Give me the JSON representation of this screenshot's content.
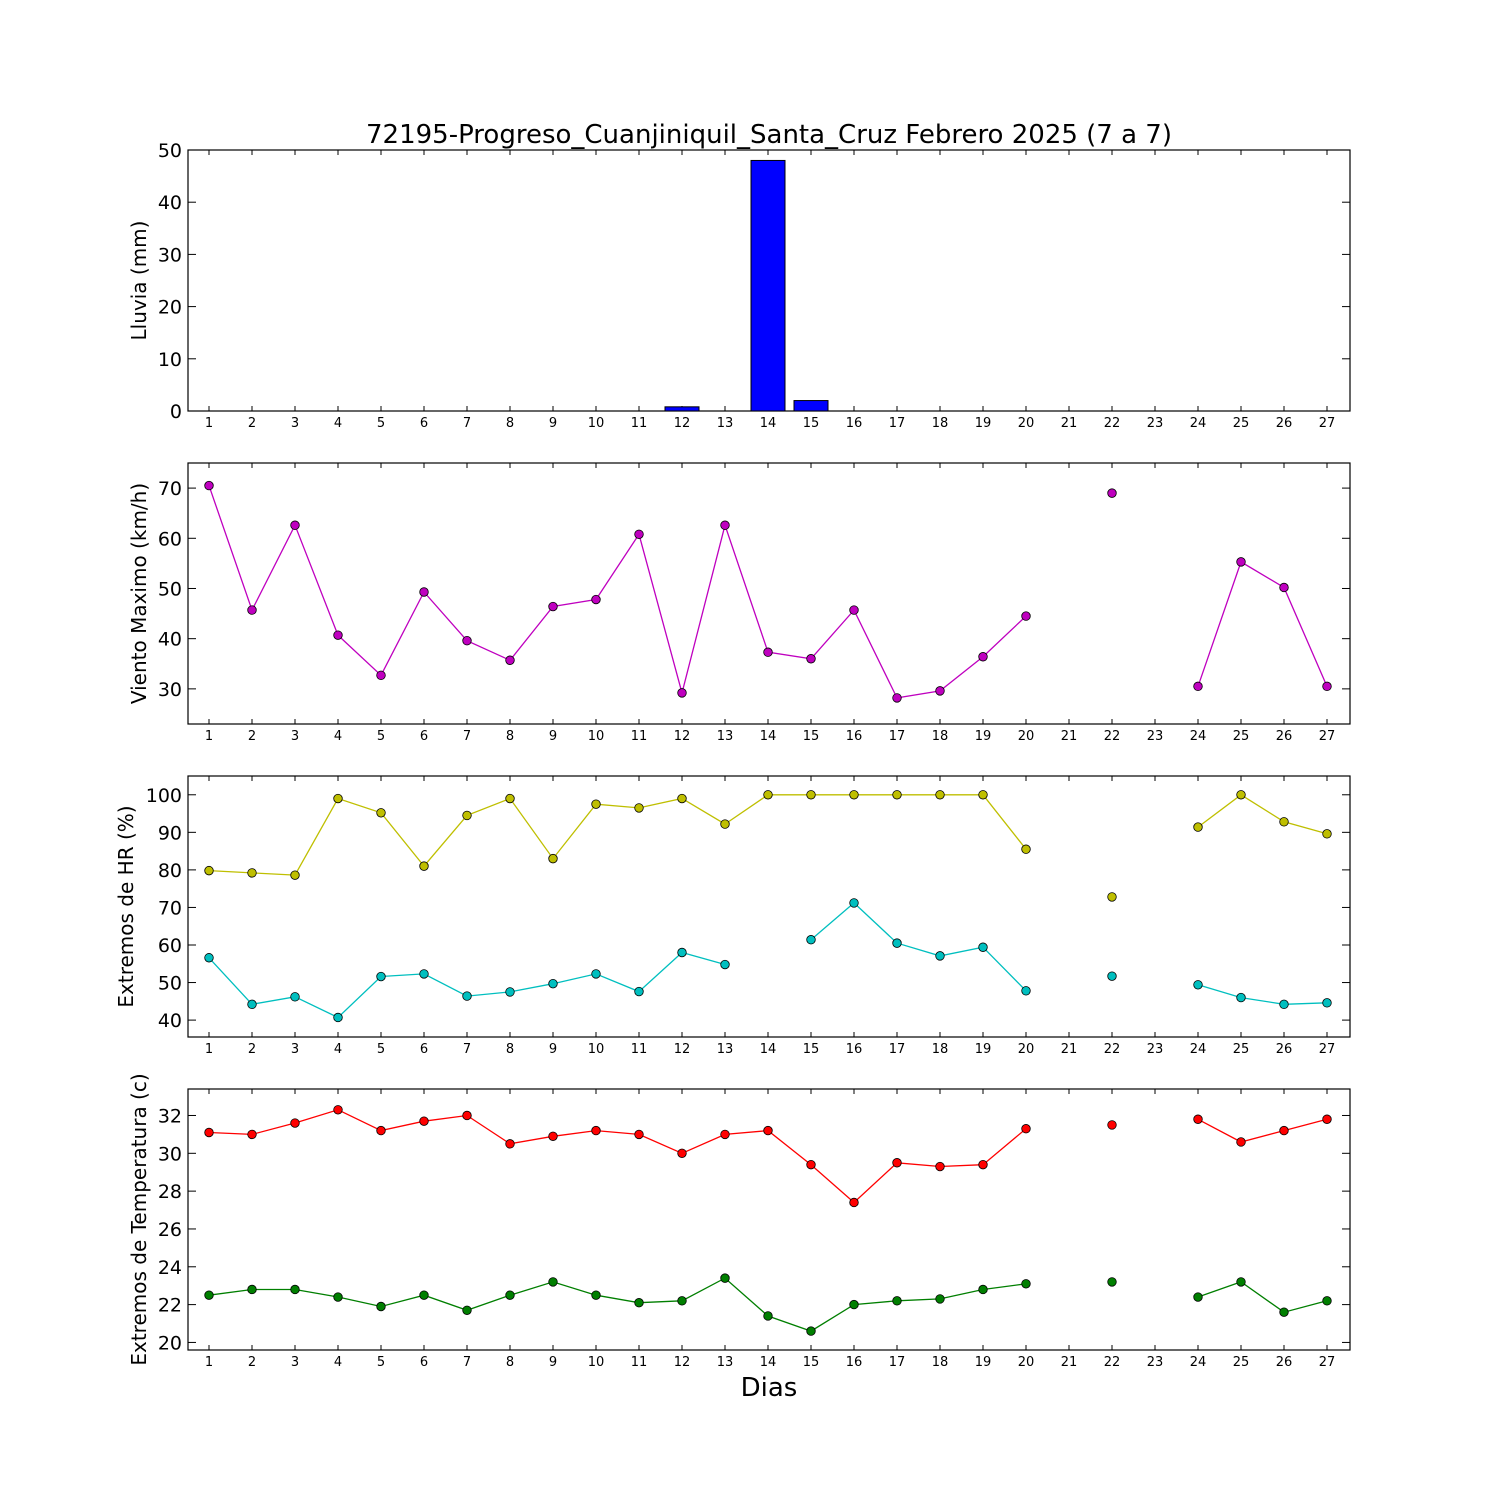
{
  "chart_data": {
    "title": "72195-Progreso_Cuanjiniquil_Santa_Cruz Febrero 2025  (7 a 7)",
    "xlabel": "Dias",
    "x": [
      1,
      2,
      3,
      4,
      5,
      6,
      7,
      8,
      9,
      10,
      11,
      12,
      13,
      14,
      15,
      16,
      17,
      18,
      19,
      20,
      21,
      22,
      23,
      24,
      25,
      26,
      27
    ],
    "panels": [
      {
        "type": "bar",
        "ylabel": "Lluvia (mm)",
        "ylim": [
          0,
          50
        ],
        "yticks": [
          0,
          10,
          20,
          30,
          40,
          50
        ],
        "series": [
          {
            "color": "#0000ff",
            "values": [
              0,
              0,
              0,
              0,
              0,
              0,
              0,
              0,
              0,
              0,
              0,
              0.8,
              0,
              48,
              2,
              0,
              0,
              0,
              0,
              0,
              0,
              0,
              0,
              0,
              0,
              0,
              0
            ]
          }
        ]
      },
      {
        "type": "line",
        "ylabel": "Viento Maximo (km/h)",
        "ylim": [
          23,
          75
        ],
        "yticks": [
          30,
          40,
          50,
          60,
          70
        ],
        "series": [
          {
            "color": "#bf00bf",
            "values": [
              70.5,
              45.7,
              62.6,
              40.7,
              32.7,
              49.3,
              39.6,
              35.7,
              46.4,
              47.8,
              60.8,
              29.2,
              62.6,
              37.3,
              36.0,
              45.7,
              28.2,
              29.6,
              36.4,
              44.5,
              null,
              69.0,
              null,
              30.5,
              55.3,
              50.2,
              30.5
            ]
          }
        ]
      },
      {
        "type": "line",
        "ylabel": "Extremos de HR (%)",
        "ylim": [
          35.5,
          105
        ],
        "yticks": [
          40,
          50,
          60,
          70,
          80,
          90,
          100
        ],
        "series": [
          {
            "color": "#bfbf00",
            "values": [
              79.8,
              79.2,
              78.6,
              99,
              95.2,
              81,
              94.5,
              99,
              83,
              97.5,
              96.5,
              99,
              92.2,
              100,
              100,
              100,
              100,
              100,
              100,
              85.5,
              null,
              72.8,
              null,
              91.4,
              100,
              92.8,
              89.6
            ]
          },
          {
            "color": "#00bfbf",
            "values": [
              56.6,
              44.2,
              46.2,
              40.7,
              51.6,
              52.3,
              46.4,
              47.5,
              49.7,
              52.3,
              47.6,
              58,
              54.8,
              null,
              61.4,
              71.2,
              60.5,
              57.1,
              59.4,
              47.8,
              null,
              51.7,
              null,
              49.4,
              46,
              44.2,
              44.6
            ]
          }
        ]
      },
      {
        "type": "line",
        "ylabel": "Extremos de Temperatura (c)",
        "ylim": [
          19.6,
          33.4
        ],
        "yticks": [
          20,
          22,
          24,
          26,
          28,
          30,
          32
        ],
        "series": [
          {
            "color": "#ff0000",
            "values": [
              31.1,
              31.0,
              31.6,
              32.3,
              31.2,
              31.7,
              32.0,
              30.5,
              30.9,
              31.2,
              31.0,
              30.0,
              31.0,
              31.2,
              29.4,
              27.4,
              29.5,
              29.3,
              29.4,
              31.3,
              null,
              31.5,
              null,
              31.8,
              30.6,
              31.2,
              31.8
            ]
          },
          {
            "color": "#007f00",
            "values": [
              22.5,
              22.8,
              22.8,
              22.4,
              21.9,
              22.5,
              21.7,
              22.5,
              23.2,
              22.5,
              22.1,
              22.2,
              23.4,
              21.4,
              20.6,
              22.0,
              22.2,
              22.3,
              22.8,
              23.1,
              null,
              23.2,
              null,
              22.4,
              23.2,
              21.6,
              22.2
            ]
          }
        ]
      }
    ]
  }
}
